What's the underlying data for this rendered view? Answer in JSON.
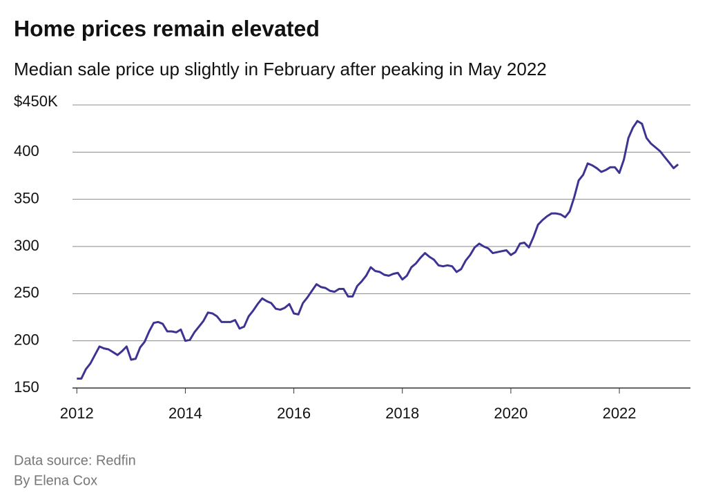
{
  "chart_data": {
    "type": "line",
    "title": "Home prices remain elevated",
    "subtitle": "Median sale price up slightly in February after peaking in May 2022",
    "source": "Data source: Redfin",
    "byline": "By Elena Cox",
    "x": [
      2012,
      2012.083,
      2012.167,
      2012.25,
      2012.333,
      2012.417,
      2012.5,
      2012.583,
      2012.667,
      2012.75,
      2012.833,
      2012.917,
      2013,
      2013.083,
      2013.167,
      2013.25,
      2013.333,
      2013.417,
      2013.5,
      2013.583,
      2013.667,
      2013.75,
      2013.833,
      2013.917,
      2014,
      2014.083,
      2014.167,
      2014.25,
      2014.333,
      2014.417,
      2014.5,
      2014.583,
      2014.667,
      2014.75,
      2014.833,
      2014.917,
      2015,
      2015.083,
      2015.167,
      2015.25,
      2015.333,
      2015.417,
      2015.5,
      2015.583,
      2015.667,
      2015.75,
      2015.833,
      2015.917,
      2016,
      2016.083,
      2016.167,
      2016.25,
      2016.333,
      2016.417,
      2016.5,
      2016.583,
      2016.667,
      2016.75,
      2016.833,
      2016.917,
      2017,
      2017.083,
      2017.167,
      2017.25,
      2017.333,
      2017.417,
      2017.5,
      2017.583,
      2017.667,
      2017.75,
      2017.833,
      2017.917,
      2018,
      2018.083,
      2018.167,
      2018.25,
      2018.333,
      2018.417,
      2018.5,
      2018.583,
      2018.667,
      2018.75,
      2018.833,
      2018.917,
      2019,
      2019.083,
      2019.167,
      2019.25,
      2019.333,
      2019.417,
      2019.5,
      2019.583,
      2019.667,
      2019.75,
      2019.833,
      2019.917,
      2020,
      2020.083,
      2020.167,
      2020.25,
      2020.333,
      2020.417,
      2020.5,
      2020.583,
      2020.667,
      2020.75,
      2020.833,
      2020.917,
      2021,
      2021.083,
      2021.167,
      2021.25,
      2021.333,
      2021.417,
      2021.5,
      2021.583,
      2021.667,
      2021.75,
      2021.833,
      2021.917,
      2022,
      2022.083,
      2022.167,
      2022.25,
      2022.333,
      2022.417,
      2022.5,
      2022.583,
      2022.667,
      2022.75,
      2022.833,
      2022.917,
      2023,
      2023.083
    ],
    "values": [
      160,
      160,
      170,
      176,
      185,
      194,
      192,
      191,
      188,
      185,
      189,
      194,
      180,
      181,
      193,
      199,
      210,
      219,
      220,
      218,
      210,
      210,
      209,
      212,
      200,
      201,
      209,
      215,
      221,
      230,
      229,
      226,
      220,
      220,
      220,
      222,
      213,
      215,
      226,
      232,
      239,
      245,
      242,
      240,
      234,
      233,
      235,
      239,
      229,
      228,
      240,
      246,
      253,
      260,
      257,
      256,
      253,
      252,
      255,
      255,
      247,
      247,
      258,
      263,
      269,
      278,
      274,
      273,
      270,
      269,
      271,
      272,
      265,
      269,
      278,
      282,
      288,
      293,
      289,
      286,
      280,
      279,
      280,
      279,
      273,
      276,
      285,
      291,
      299,
      303,
      300,
      298,
      293,
      294,
      295,
      296,
      291,
      294,
      303,
      304,
      299,
      310,
      323,
      328,
      332,
      335,
      335,
      334,
      331,
      337,
      352,
      370,
      376,
      388,
      386,
      383,
      379,
      381,
      384,
      384,
      378,
      392,
      415,
      426,
      433,
      430,
      415,
      409,
      405,
      401,
      395,
      389,
      383,
      387
    ],
    "color": "#3d3393",
    "xlim": [
      2011.92,
      2023.31
    ],
    "xticks": [
      2012,
      2014,
      2016,
      2018,
      2020,
      2022
    ],
    "ylim": [
      150,
      450
    ],
    "yticks": [
      150,
      200,
      250,
      300,
      350,
      400,
      {
        "value": 450,
        "label": "$450K"
      }
    ],
    "grid": true
  }
}
